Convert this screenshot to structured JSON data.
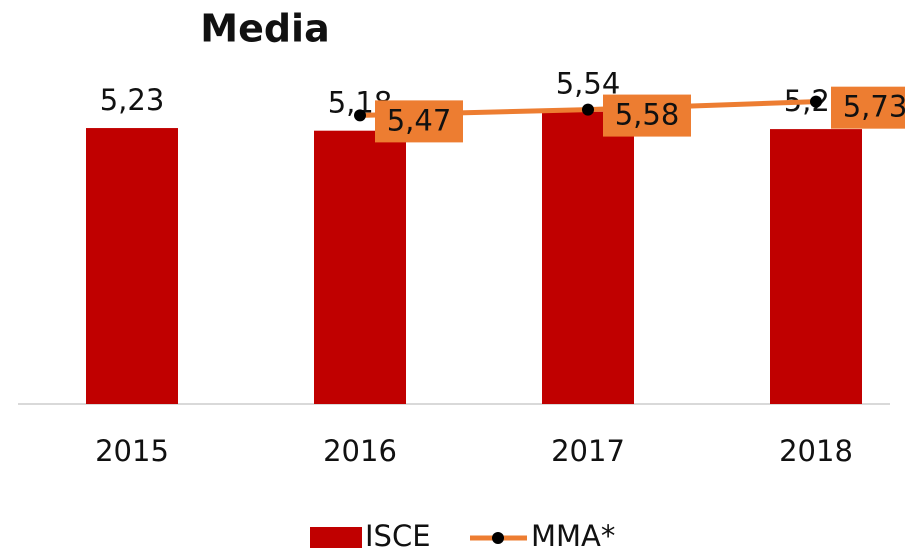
{
  "chart_data": {
    "type": "bar",
    "title": "Media",
    "categories": [
      "2015",
      "2016",
      "2017",
      "2018"
    ],
    "series": [
      {
        "name": "ISCE",
        "type": "bar",
        "color": "#c00000",
        "values": [
          5.23,
          5.18,
          5.54,
          5.21
        ],
        "value_labels": [
          "5,23",
          "5,18",
          "5,54",
          "5,21"
        ]
      },
      {
        "name": "MMA*",
        "type": "line",
        "color": "#ed7d31",
        "values": [
          null,
          5.47,
          5.58,
          5.73
        ],
        "value_labels": [
          null,
          "5,47",
          "5,58",
          "5,73"
        ]
      }
    ],
    "ylim": [
      0,
      7.6
    ]
  }
}
